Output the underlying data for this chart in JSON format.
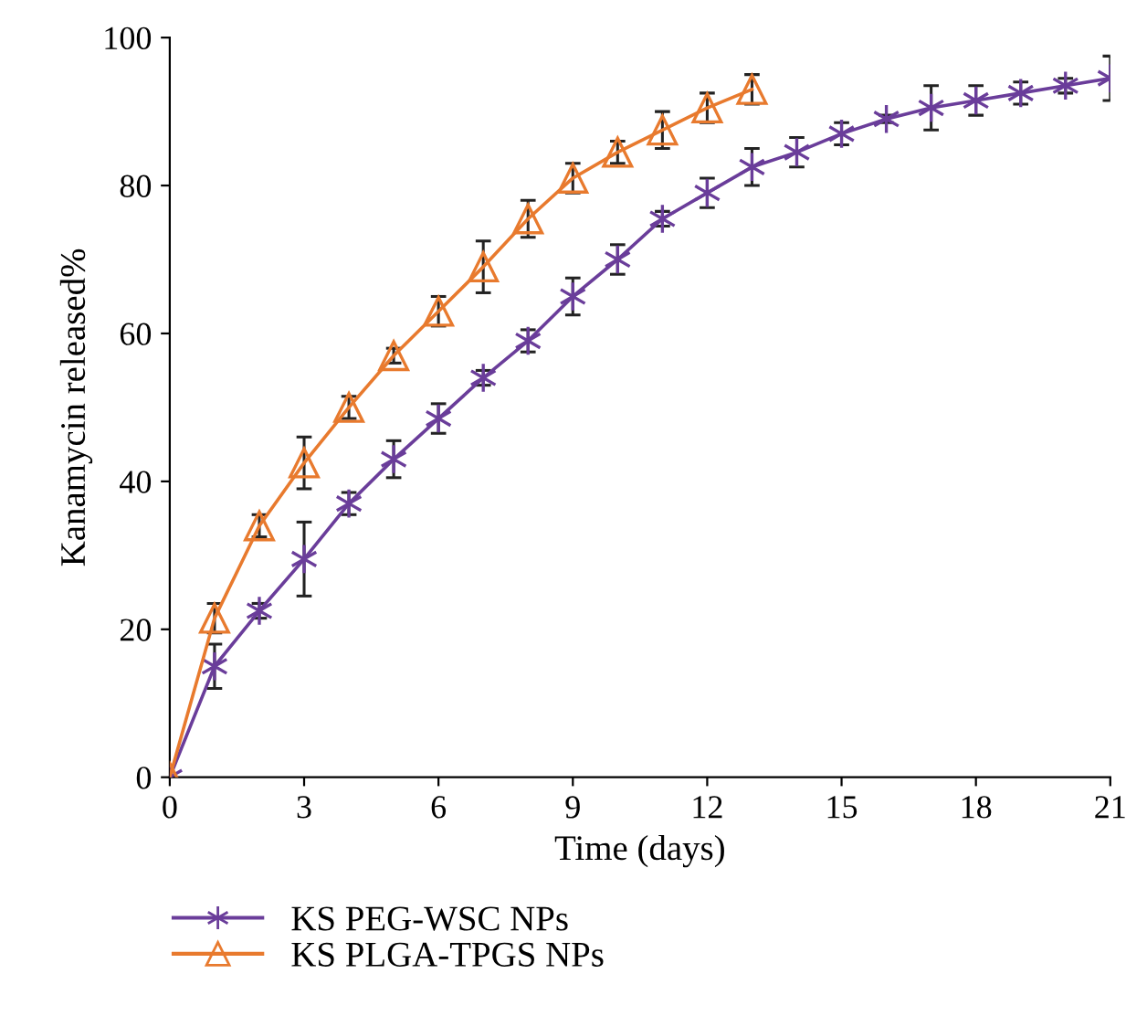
{
  "chart_data": {
    "type": "line",
    "xlabel": "Time (days)",
    "ylabel": "Kanamycin released%",
    "xlim": [
      0,
      21
    ],
    "xticks": [
      0,
      3,
      6,
      9,
      12,
      15,
      18,
      21
    ],
    "ylim": [
      0,
      100
    ],
    "yticks": [
      0,
      20,
      40,
      60,
      80,
      100
    ],
    "grid": false,
    "legend": "bottom",
    "series": [
      {
        "name": "KS PEG-WSC NPs",
        "color": "#6a3d9a",
        "marker": "cross",
        "x": [
          0,
          1,
          2,
          3,
          4,
          5,
          6,
          7,
          8,
          9,
          10,
          11,
          12,
          13,
          14,
          15,
          16,
          17,
          18,
          19,
          20,
          21
        ],
        "values": [
          0,
          15,
          22.5,
          29.5,
          37,
          43,
          48.5,
          54,
          59,
          65,
          70,
          75.5,
          79,
          82.5,
          84.5,
          87,
          89,
          90.5,
          91.5,
          92.5,
          93.5,
          94.5
        ],
        "errors": [
          0,
          3,
          1,
          5,
          1.5,
          2.5,
          2,
          1,
          1.5,
          2.5,
          2,
          1,
          2,
          2.5,
          2,
          1.5,
          0.5,
          3,
          2,
          1.5,
          1,
          3
        ]
      },
      {
        "name": "KS PLGA-TPGS NPs",
        "color": "#e87a2e",
        "marker": "triangle",
        "x": [
          0,
          1,
          2,
          3,
          4,
          5,
          6,
          7,
          8,
          9,
          10,
          11,
          12,
          13
        ],
        "values": [
          0,
          21.5,
          34,
          42.5,
          50,
          57,
          63,
          69,
          75.5,
          81,
          84.5,
          87.5,
          90.5,
          93
        ],
        "errors": [
          0,
          2,
          1.5,
          3.5,
          1.5,
          1,
          2,
          3.5,
          2.5,
          2,
          1.5,
          2.5,
          2,
          2
        ]
      }
    ]
  }
}
